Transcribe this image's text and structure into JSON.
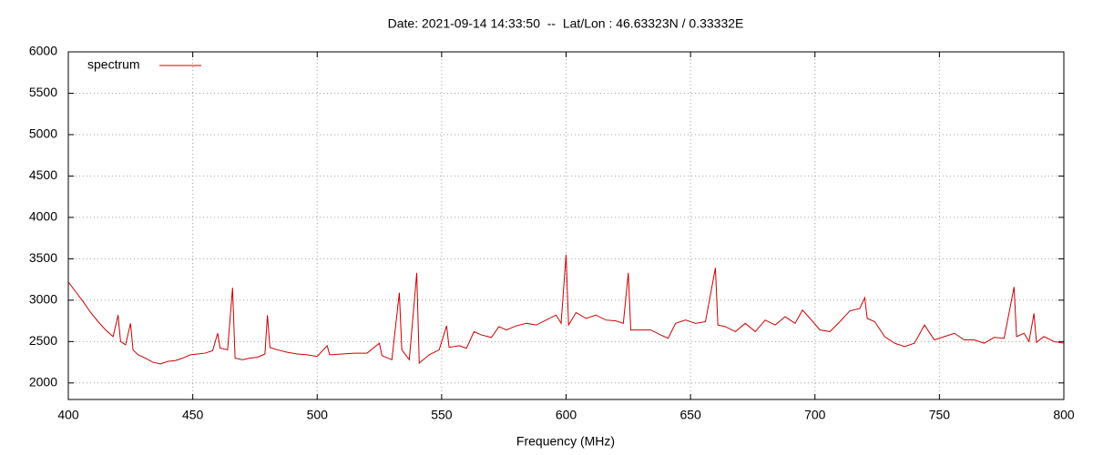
{
  "chart_data": {
    "type": "line",
    "title": "Date: 2021-09-14 14:33:50  --  Lat/Lon : 46.63323N / 0.33332E",
    "x_label": "Frequency (MHz)",
    "xlim": [
      400,
      800
    ],
    "xticks": [
      400,
      450,
      500,
      550,
      600,
      650,
      700,
      750,
      800
    ],
    "ylim": [
      1800,
      6000
    ],
    "yticks": [
      2000,
      2500,
      3000,
      3500,
      4000,
      4500,
      5000,
      5500,
      6000
    ],
    "grid": true,
    "legend": "top-left",
    "x": [
      400,
      403,
      406,
      409,
      412,
      415,
      418,
      420,
      421,
      423,
      425,
      426,
      428,
      431,
      434,
      437,
      440,
      443,
      446,
      449,
      452,
      455,
      458,
      460,
      461,
      464,
      466,
      467,
      470,
      473,
      476,
      479,
      480,
      481,
      484,
      488,
      492,
      496,
      500,
      504,
      505,
      510,
      515,
      520,
      525,
      526,
      530,
      533,
      534,
      537,
      540,
      541,
      545,
      549,
      552,
      553,
      557,
      560,
      563,
      566,
      570,
      573,
      576,
      580,
      584,
      588,
      592,
      596,
      598,
      600,
      601,
      604,
      608,
      612,
      616,
      620,
      623,
      625,
      626,
      630,
      634,
      638,
      641,
      644,
      648,
      652,
      656,
      660,
      661,
      664,
      668,
      672,
      676,
      680,
      684,
      688,
      692,
      695,
      698,
      702,
      706,
      710,
      714,
      718,
      720,
      721,
      724,
      728,
      732,
      736,
      740,
      744,
      748,
      752,
      756,
      760,
      764,
      768,
      772,
      776,
      780,
      781,
      784,
      786,
      788,
      789,
      792,
      796,
      800
    ],
    "series": [
      {
        "name": "spectrum",
        "color": "#cc0000",
        "values": [
          3220,
          3100,
          2980,
          2850,
          2740,
          2640,
          2560,
          2820,
          2500,
          2460,
          2720,
          2400,
          2340,
          2300,
          2250,
          2230,
          2260,
          2270,
          2300,
          2340,
          2350,
          2360,
          2390,
          2600,
          2420,
          2400,
          3150,
          2300,
          2280,
          2300,
          2310,
          2350,
          2820,
          2430,
          2400,
          2370,
          2350,
          2340,
          2320,
          2450,
          2340,
          2350,
          2360,
          2360,
          2480,
          2330,
          2280,
          3090,
          2400,
          2280,
          3330,
          2240,
          2340,
          2400,
          2690,
          2430,
          2450,
          2420,
          2620,
          2580,
          2550,
          2680,
          2640,
          2690,
          2720,
          2700,
          2760,
          2820,
          2720,
          3550,
          2700,
          2850,
          2780,
          2820,
          2760,
          2750,
          2720,
          3330,
          2640,
          2640,
          2640,
          2580,
          2540,
          2720,
          2760,
          2720,
          2740,
          3390,
          2700,
          2680,
          2620,
          2720,
          2620,
          2760,
          2700,
          2800,
          2720,
          2880,
          2780,
          2640,
          2620,
          2740,
          2870,
          2900,
          3030,
          2780,
          2740,
          2560,
          2480,
          2440,
          2480,
          2700,
          2520,
          2560,
          2600,
          2520,
          2520,
          2480,
          2550,
          2540,
          3160,
          2560,
          2600,
          2500,
          2840,
          2490,
          2560,
          2500,
          2480
        ]
      }
    ]
  }
}
